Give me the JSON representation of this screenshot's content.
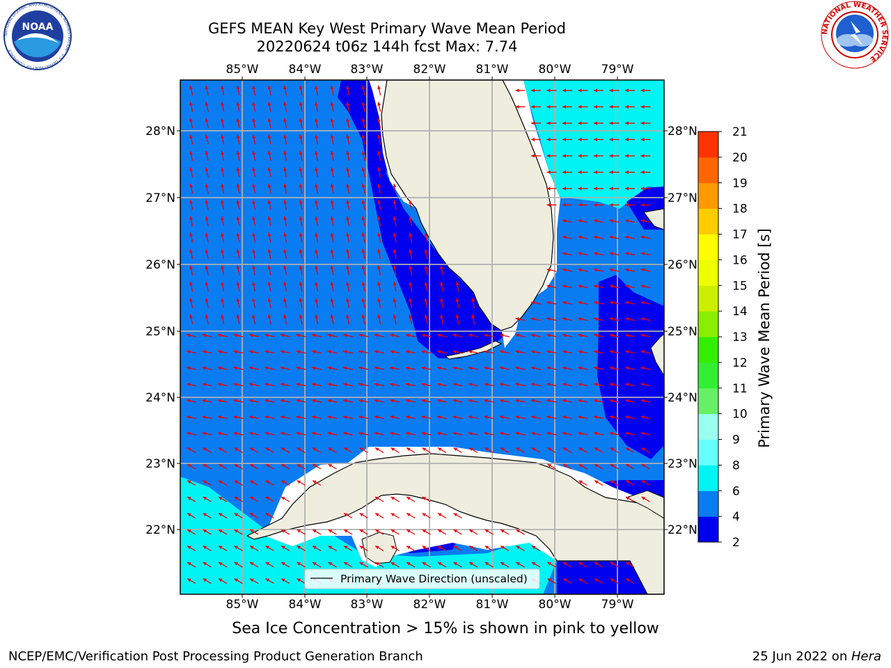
{
  "title_line1": "GEFS MEAN Key West Primary Wave Mean Period",
  "title_line2": "20220624 t06z 144h fcst   Max: 7.74",
  "map": {
    "lon_labels": [
      "85°W",
      "84°W",
      "83°W",
      "82°W",
      "81°W",
      "80°W",
      "79°W"
    ],
    "lat_labels": [
      "28°N",
      "27°N",
      "26°N",
      "25°N",
      "24°N",
      "23°N",
      "22°N"
    ],
    "legend_label": "Primary Wave Direction (unscaled)",
    "colors": {
      "land": "#efedde",
      "band_2_4": "#0000ee",
      "band_4_6": "#0a7cf2",
      "band_6_8": "#00f4f4",
      "arrow": "#ee0000",
      "grid": "#b0b0b0"
    }
  },
  "colorbar": {
    "label": "Primary Wave Mean Period [s]",
    "ticks": [
      "2",
      "4",
      "6",
      "8",
      "9",
      "10",
      "11",
      "12",
      "13",
      "14",
      "15",
      "16",
      "17",
      "18",
      "19",
      "20",
      "21"
    ],
    "colors": [
      "#0000ee",
      "#0a7cf2",
      "#00f4f4",
      "#66ffff",
      "#99ffee",
      "#66f066",
      "#33ee33",
      "#33ee00",
      "#88ee00",
      "#ccee00",
      "#eeff00",
      "#ffff00",
      "#ffcc00",
      "#ff9900",
      "#ff6600",
      "#ff3300",
      "#ee0000"
    ]
  },
  "logos": {
    "noaa": "NOAA",
    "noaa_ring": "NATIONAL OCEANIC AND ATMOSPHERIC ADMINISTRATION · U.S. DEPARTMENT OF COMMERCE",
    "nws_ring": "NATIONAL WEATHER SERVICE"
  },
  "footer": {
    "subtitle": "Sea Ice Concentration > 15% is shown in pink to yellow",
    "left": "NCEP/EMC/Verification Post Processing Product Generation Branch",
    "right_date": "25 Jun 2022 on ",
    "right_host": "Hera"
  }
}
